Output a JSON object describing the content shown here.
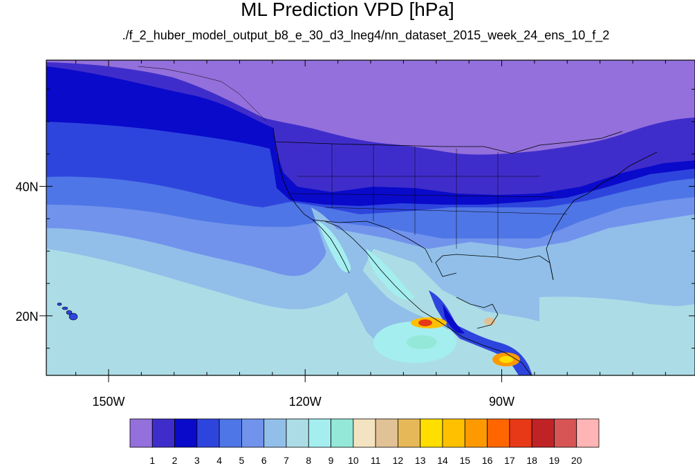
{
  "header": {
    "title": "ML Prediction VPD [hPa]",
    "subtitle": "./f_2_huber_model_output_b8_e_30_d3_lneg4/nn_dataset_2015_week_24_ens_10_f_2"
  },
  "axes": {
    "lat_labels": [
      {
        "value": 40,
        "label": "40N"
      },
      {
        "value": 20,
        "label": "20N"
      }
    ],
    "lon_labels": [
      {
        "value": -150,
        "label": "150W"
      },
      {
        "value": -120,
        "label": "120W"
      },
      {
        "value": -90,
        "label": "90W"
      }
    ],
    "lon_range": [
      -159.5,
      -60.5
    ],
    "lat_range": [
      10.8,
      59.5
    ]
  },
  "colorbar": {
    "colors": [
      "#9370db",
      "#3f2dcb",
      "#0a0acb",
      "#2e45dd",
      "#4f76e6",
      "#7193ec",
      "#91bfe9",
      "#acdde6",
      "#a4eef0",
      "#94e8d8",
      "#f3e3c0",
      "#e1c296",
      "#e6b858",
      "#ffde00",
      "#ffc000",
      "#ff9900",
      "#ff6600",
      "#e73818",
      "#c02326",
      "#d85555",
      "#ffb5b5"
    ],
    "labels": [
      "1",
      "2",
      "3",
      "4",
      "5",
      "6",
      "7",
      "8",
      "9",
      "10",
      "11",
      "12",
      "13",
      "14",
      "15",
      "16",
      "17",
      "18",
      "19",
      "20"
    ]
  }
}
